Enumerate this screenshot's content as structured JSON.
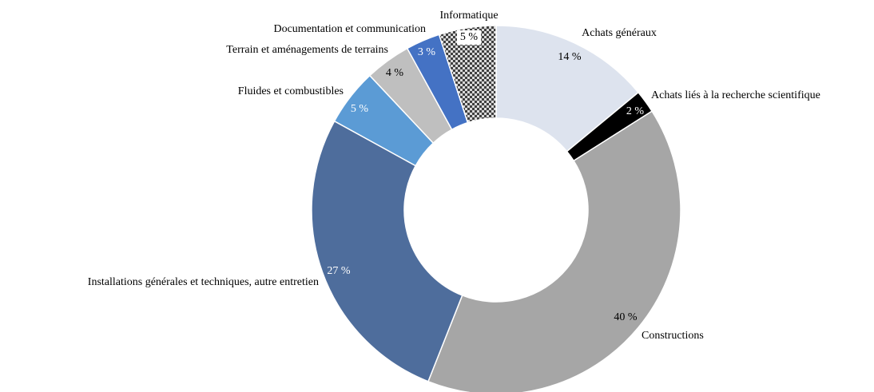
{
  "chart_data": {
    "type": "donut",
    "categories": [
      "Achats généraux",
      "Achats liés à la recherche scientifique",
      "Constructions",
      "Installations générales et techniques, autre entretien",
      "Fluides et combustibles",
      "Terrain et aménagements de terrains",
      "Documentation et communication",
      "Informatique"
    ],
    "values": [
      14,
      2,
      40,
      27,
      5,
      4,
      3,
      5
    ],
    "value_labels": [
      "14 %",
      "2 %",
      "40 %",
      "27 %",
      "5 %",
      "4 %",
      "3 %",
      "5 %"
    ],
    "colors": [
      "#dde3ee",
      "#000000",
      "#a6a6a6",
      "#4e6d9c",
      "#5b9bd5",
      "#bfbfbf",
      "#4472c4",
      "url(#checker)"
    ]
  }
}
